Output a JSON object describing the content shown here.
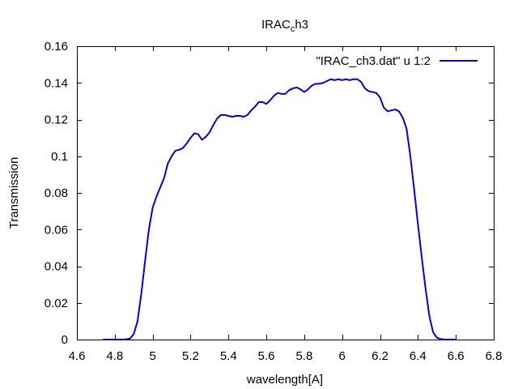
{
  "chart_data": {
    "type": "line",
    "title": "IRAC",
    "title_subscript": "c",
    "title_suffix": "h3",
    "xlabel": "wavelength[A]",
    "ylabel": "Transmission",
    "xlim": [
      4.6,
      6.8
    ],
    "ylim": [
      0,
      0.16
    ],
    "xticks": [
      4.6,
      4.8,
      5,
      5.2,
      5.4,
      5.6,
      5.8,
      6,
      6.2,
      6.4,
      6.6,
      6.8
    ],
    "xtick_labels": [
      "4.6",
      "4.8",
      "5",
      "5.2",
      "5.4",
      "5.6",
      "5.8",
      "6",
      "6.2",
      "6.4",
      "6.6",
      "6.8"
    ],
    "yticks": [
      0,
      0.02,
      0.04,
      0.06,
      0.08,
      0.1,
      0.12,
      0.14,
      0.16
    ],
    "ytick_labels": [
      "0",
      "0.02",
      "0.04",
      "0.06",
      "0.08",
      "0.1",
      "0.12",
      "0.14",
      "0.16"
    ],
    "grid": false,
    "legend_position": "top-right",
    "series": [
      {
        "name": "\"IRAC_ch3.dat\" u 1:2",
        "color": "#0000e0",
        "x": [
          4.74,
          4.8,
          4.85,
          4.88,
          4.9,
          4.92,
          4.94,
          4.96,
          4.98,
          5.0,
          5.02,
          5.04,
          5.06,
          5.08,
          5.1,
          5.12,
          5.14,
          5.16,
          5.18,
          5.2,
          5.22,
          5.24,
          5.26,
          5.28,
          5.3,
          5.32,
          5.34,
          5.36,
          5.38,
          5.4,
          5.42,
          5.44,
          5.46,
          5.48,
          5.5,
          5.52,
          5.54,
          5.56,
          5.58,
          5.6,
          5.62,
          5.64,
          5.66,
          5.68,
          5.7,
          5.72,
          5.74,
          5.76,
          5.78,
          5.8,
          5.82,
          5.84,
          5.86,
          5.88,
          5.9,
          5.92,
          5.94,
          5.96,
          5.98,
          6.0,
          6.02,
          6.04,
          6.06,
          6.08,
          6.1,
          6.12,
          6.14,
          6.16,
          6.18,
          6.2,
          6.22,
          6.24,
          6.26,
          6.28,
          6.3,
          6.32,
          6.34,
          6.36,
          6.38,
          6.4,
          6.42,
          6.44,
          6.46,
          6.48,
          6.5,
          6.52,
          6.54,
          6.56,
          6.58,
          6.6
        ],
        "y": [
          0.0,
          0.0,
          0.0,
          0.0005,
          0.003,
          0.01,
          0.025,
          0.043,
          0.06,
          0.072,
          0.078,
          0.083,
          0.088,
          0.096,
          0.1,
          0.103,
          0.1035,
          0.1045,
          0.107,
          0.11,
          0.1125,
          0.112,
          0.109,
          0.1105,
          0.113,
          0.117,
          0.1205,
          0.1225,
          0.1225,
          0.122,
          0.1215,
          0.122,
          0.122,
          0.1215,
          0.1225,
          0.125,
          0.127,
          0.1295,
          0.1295,
          0.1285,
          0.1305,
          0.133,
          0.1345,
          0.134,
          0.134,
          0.136,
          0.137,
          0.1375,
          0.1365,
          0.135,
          0.1365,
          0.1385,
          0.1395,
          0.1395,
          0.14,
          0.141,
          0.142,
          0.1415,
          0.142,
          0.1415,
          0.142,
          0.1415,
          0.142,
          0.142,
          0.1405,
          0.137,
          0.1355,
          0.135,
          0.1345,
          0.132,
          0.1265,
          0.1245,
          0.125,
          0.1255,
          0.1245,
          0.121,
          0.115,
          0.1,
          0.082,
          0.063,
          0.045,
          0.028,
          0.013,
          0.004,
          0.001,
          0.0003,
          0.0,
          0.0,
          0.0,
          0.0
        ]
      }
    ]
  }
}
